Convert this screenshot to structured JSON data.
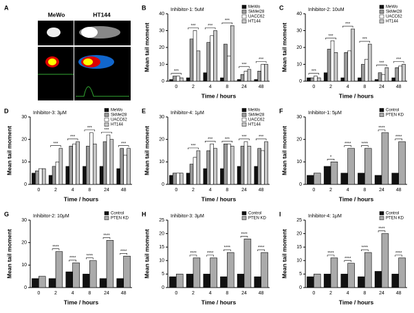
{
  "panel_a": {
    "label": "A",
    "captions": [
      "MeWo",
      "HT144"
    ]
  },
  "chart_data": [
    {
      "type": "bar",
      "label": "B",
      "subtitle": "Inhibitor-1: 5uM",
      "x_label": "Time / hours",
      "y_label": "Mean tail moment",
      "categories": [
        "0",
        "2",
        "4",
        "8",
        "24",
        "48"
      ],
      "series": [
        {
          "name": "MeWo",
          "color": "#111111",
          "values": [
            1,
            2,
            5,
            2,
            1,
            1
          ]
        },
        {
          "name": "SkMel28",
          "color": "#999999",
          "values": [
            3,
            25,
            23,
            22,
            4,
            6
          ]
        },
        {
          "name": "UACC62",
          "color": "#ffffff",
          "values": [
            3,
            30,
            27,
            15,
            6,
            10
          ]
        },
        {
          "name": "HT144",
          "color": "#c8c8c8",
          "values": [
            2,
            18,
            30,
            33,
            7,
            10
          ]
        }
      ],
      "annotations": [
        "***",
        "***",
        "***",
        "***",
        "***",
        "***"
      ],
      "ylim": [
        0,
        40
      ],
      "yticks": [
        0,
        10,
        20,
        30,
        40
      ]
    },
    {
      "type": "bar",
      "label": "C",
      "subtitle": "Inhibitor-2: 10uM",
      "x_label": "Time / hours",
      "y_label": "Mean tail moment",
      "categories": [
        "0",
        "2",
        "4",
        "8",
        "24",
        "48"
      ],
      "series": [
        {
          "name": "MeWo",
          "color": "#111111",
          "values": [
            2,
            5,
            2,
            2,
            1,
            2
          ]
        },
        {
          "name": "SkMel28",
          "color": "#999999",
          "values": [
            2,
            19,
            17,
            10,
            5,
            8
          ]
        },
        {
          "name": "UACC62",
          "color": "#ffffff",
          "values": [
            3,
            24,
            18,
            13,
            4,
            9
          ]
        },
        {
          "name": "HT144",
          "color": "#c8c8c8",
          "values": [
            2,
            17,
            31,
            22,
            8,
            10
          ]
        }
      ],
      "annotations": [
        "***",
        "***",
        "***",
        "***",
        "***",
        "***"
      ],
      "ylim": [
        0,
        40
      ],
      "yticks": [
        0,
        10,
        20,
        30,
        40
      ]
    },
    {
      "type": "bar",
      "label": "D",
      "subtitle": "Inhibitor-3: 3μM",
      "x_label": "Time / hours",
      "y_label": "Mean tail moment",
      "categories": [
        "0",
        "2",
        "4",
        "8",
        "24",
        "48"
      ],
      "series": [
        {
          "name": "MeWo",
          "color": "#111111",
          "values": [
            5,
            4,
            8,
            8,
            8,
            7
          ]
        },
        {
          "name": "SkMel28",
          "color": "#999999",
          "values": [
            6,
            8,
            17,
            17,
            19,
            16
          ]
        },
        {
          "name": "UACC62",
          "color": "#ffffff",
          "values": [
            7,
            10,
            18,
            23,
            22,
            13
          ]
        },
        {
          "name": "HT144",
          "color": "#c8c8c8",
          "values": [
            7,
            16,
            19,
            18,
            20,
            16
          ]
        }
      ],
      "annotations": [
        null,
        "***",
        "***",
        "***",
        "***",
        "***"
      ],
      "ylim": [
        0,
        30
      ],
      "yticks": [
        0,
        10,
        20,
        30
      ]
    },
    {
      "type": "bar",
      "label": "E",
      "subtitle": "Inhibitor-4: 1μM",
      "x_label": "Time / hours",
      "y_label": "Mean tail moment",
      "categories": [
        "0",
        "2",
        "4",
        "8",
        "24",
        "48"
      ],
      "series": [
        {
          "name": "MeWo",
          "color": "#111111",
          "values": [
            4,
            5,
            7,
            7,
            8,
            8
          ]
        },
        {
          "name": "SkMel28",
          "color": "#999999",
          "values": [
            5,
            9,
            15,
            18,
            17,
            16
          ]
        },
        {
          "name": "UACC62",
          "color": "#ffffff",
          "values": [
            5,
            12,
            18,
            18,
            19,
            15
          ]
        },
        {
          "name": "HT144",
          "color": "#c8c8c8",
          "values": [
            5,
            15,
            16,
            17,
            17,
            19
          ]
        }
      ],
      "annotations": [
        null,
        "***",
        "***",
        "***",
        "***",
        "***"
      ],
      "ylim": [
        0,
        30
      ],
      "yticks": [
        0,
        10,
        20,
        30
      ]
    },
    {
      "type": "bar",
      "label": "F",
      "subtitle": "Inhibitor-1: 5μM",
      "x_label": "Time / hours",
      "y_label": "Mean tail moment",
      "categories": [
        "0",
        "2",
        "4",
        "8",
        "24",
        "48"
      ],
      "series": [
        {
          "name": "Control",
          "color": "#111111",
          "values": [
            4,
            8,
            5,
            5,
            4,
            5
          ]
        },
        {
          "name": "PTEN KD",
          "color": "#aaaaaa",
          "values": [
            5,
            10,
            16,
            16,
            23,
            19
          ]
        }
      ],
      "annotations": [
        null,
        "*",
        "****",
        "****",
        "****",
        "****"
      ],
      "ylim": [
        0,
        30
      ],
      "yticks": [
        0,
        10,
        20,
        30
      ]
    },
    {
      "type": "bar",
      "label": "G",
      "subtitle": "Inhibitor-2: 10μM",
      "x_label": "Time / hours",
      "y_label": "Mean tail moment",
      "categories": [
        "0",
        "2",
        "4",
        "8",
        "24",
        "48"
      ],
      "series": [
        {
          "name": "Control",
          "color": "#111111",
          "values": [
            4,
            4,
            7,
            6,
            4,
            4
          ]
        },
        {
          "name": "PTEN KD",
          "color": "#aaaaaa",
          "values": [
            5,
            16,
            11,
            12,
            21,
            14
          ]
        }
      ],
      "annotations": [
        null,
        "****",
        "****",
        "****",
        "****",
        "****"
      ],
      "ylim": [
        0,
        30
      ],
      "yticks": [
        0,
        10,
        20,
        30
      ]
    },
    {
      "type": "bar",
      "label": "H",
      "subtitle": "Inhibitor-3: 3μM",
      "x_label": "Time / hours",
      "y_label": "Mean tail moment",
      "categories": [
        "0",
        "2",
        "4",
        "8",
        "24",
        "48"
      ],
      "series": [
        {
          "name": "Control",
          "color": "#111111",
          "values": [
            4,
            5,
            5,
            4,
            5,
            4
          ]
        },
        {
          "name": "PTEN KD",
          "color": "#aaaaaa",
          "values": [
            5,
            11,
            11,
            13,
            18,
            13
          ]
        }
      ],
      "annotations": [
        null,
        "****",
        "****",
        "****",
        "****",
        "****"
      ],
      "ylim": [
        0,
        25
      ],
      "yticks": [
        0,
        5,
        10,
        15,
        20,
        25
      ]
    },
    {
      "type": "bar",
      "label": "I",
      "subtitle": "Inhibitor-4: 1μM",
      "x_label": "Time / hours",
      "y_label": "Mean tail moment",
      "categories": [
        "0",
        "2",
        "4",
        "8",
        "24",
        "48"
      ],
      "series": [
        {
          "name": "Control",
          "color": "#111111",
          "values": [
            4,
            5,
            5,
            4,
            6,
            5
          ]
        },
        {
          "name": "PTEN KD",
          "color": "#aaaaaa",
          "values": [
            5,
            11,
            9,
            13,
            20,
            11
          ]
        }
      ],
      "annotations": [
        null,
        "****",
        "****",
        "****",
        "****",
        "****"
      ],
      "ylim": [
        0,
        25
      ],
      "yticks": [
        0,
        5,
        10,
        15,
        20,
        25
      ]
    }
  ]
}
